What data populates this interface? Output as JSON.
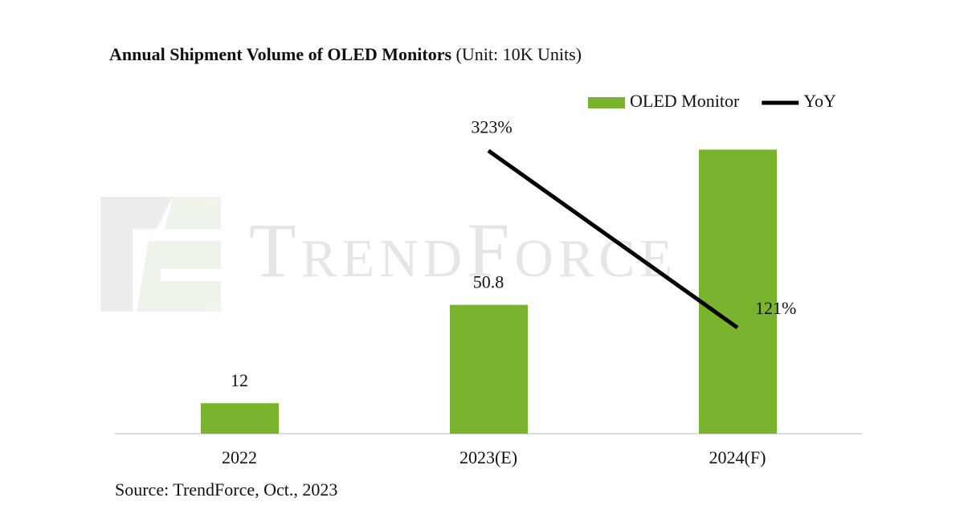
{
  "chart_data": {
    "type": "bar",
    "title": "Annual Shipment Volume of OLED Monitors",
    "subtitle": "(Unit: 10K Units)",
    "watermark": "TrendForce",
    "source": "Source: TrendForce, Oct., 2023",
    "categories": [
      "2022",
      "2023(E)",
      "2024(F)"
    ],
    "series": [
      {
        "name": "OLED Monitor",
        "type": "bar",
        "color": "#7ab32e",
        "values": [
          12,
          50.8,
          112
        ],
        "value_labels": [
          "12",
          "50.8",
          null
        ]
      },
      {
        "name": "YoY",
        "type": "line",
        "axis": "y2",
        "color": "#000000",
        "values": [
          null,
          323,
          121
        ],
        "value_labels": [
          null,
          "323%",
          "121%"
        ]
      }
    ],
    "ylim": [
      0,
      133
    ],
    "y2lim": [
      0,
      385
    ],
    "legend": "top-right"
  }
}
